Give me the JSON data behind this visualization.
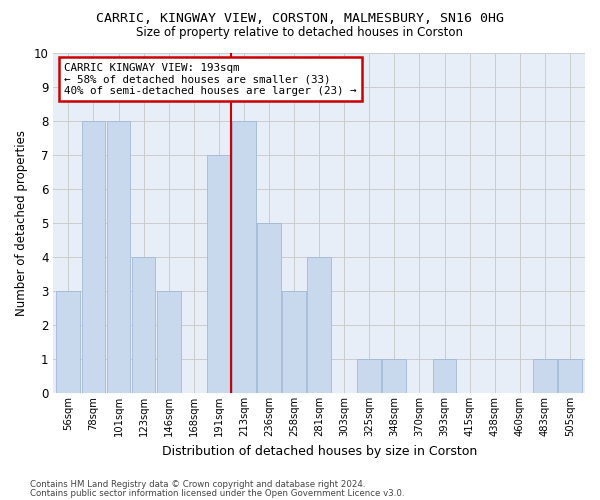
{
  "title1": "CARRIC, KINGWAY VIEW, CORSTON, MALMESBURY, SN16 0HG",
  "title2": "Size of property relative to detached houses in Corston",
  "xlabel": "Distribution of detached houses by size in Corston",
  "ylabel": "Number of detached properties",
  "categories": [
    "56sqm",
    "78sqm",
    "101sqm",
    "123sqm",
    "146sqm",
    "168sqm",
    "191sqm",
    "213sqm",
    "236sqm",
    "258sqm",
    "281sqm",
    "303sqm",
    "325sqm",
    "348sqm",
    "370sqm",
    "393sqm",
    "415sqm",
    "438sqm",
    "460sqm",
    "483sqm",
    "505sqm"
  ],
  "values": [
    3,
    8,
    8,
    4,
    3,
    0,
    7,
    8,
    5,
    3,
    4,
    0,
    1,
    1,
    0,
    1,
    0,
    0,
    0,
    1,
    1
  ],
  "bar_color": "#c9d9ed",
  "bar_edge_color": "#a0b8d8",
  "ref_line_color": "#cc0000",
  "annotation_line1": "CARRIC KINGWAY VIEW: 193sqm",
  "annotation_line2": "← 58% of detached houses are smaller (33)",
  "annotation_line3": "40% of semi-detached houses are larger (23) →",
  "annotation_box_color": "#cc0000",
  "ylim": [
    0,
    10
  ],
  "yticks": [
    0,
    1,
    2,
    3,
    4,
    5,
    6,
    7,
    8,
    9,
    10
  ],
  "grid_color": "#cccccc",
  "bg_color": "#e8eef8",
  "footer1": "Contains HM Land Registry data © Crown copyright and database right 2024.",
  "footer2": "Contains public sector information licensed under the Open Government Licence v3.0."
}
